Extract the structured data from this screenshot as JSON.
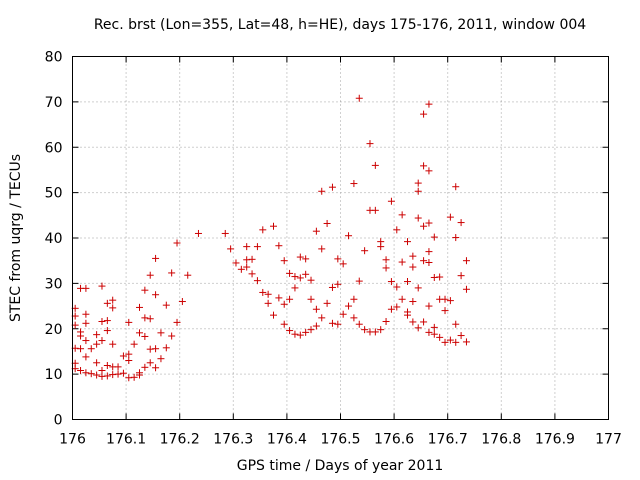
{
  "chart_data": {
    "type": "scatter",
    "title": "Rec. brst (Lon=355, Lat=48, h=HE), days 175-176, 2011, window 004",
    "xlabel": "GPS time / Days of year 2011",
    "ylabel": "STEC from uqrg / TECUs",
    "xlim": [
      176,
      177
    ],
    "ylim": [
      0,
      80
    ],
    "xticks": [
      "176",
      "176.1",
      "176.2",
      "176.3",
      "176.4",
      "176.5",
      "176.6",
      "176.7",
      "176.8",
      "176.9",
      "177"
    ],
    "yticks": [
      "0",
      "10",
      "20",
      "30",
      "40",
      "50",
      "60",
      "70",
      "80"
    ],
    "grid": true,
    "marker": "+",
    "color": "#cc0000",
    "series": [
      {
        "name": "STEC",
        "points": [
          [
            176.005,
            24.5
          ],
          [
            176.005,
            22.8
          ],
          [
            176.005,
            20.8
          ],
          [
            176.005,
            15.7
          ],
          [
            176.005,
            12.4
          ],
          [
            176.005,
            11.2
          ],
          [
            176.015,
            28.9
          ],
          [
            176.015,
            19.3
          ],
          [
            176.015,
            18.4
          ],
          [
            176.015,
            15.6
          ],
          [
            176.015,
            10.8
          ],
          [
            176.025,
            28.9
          ],
          [
            176.025,
            23.2
          ],
          [
            176.025,
            21.2
          ],
          [
            176.025,
            17.4
          ],
          [
            176.025,
            13.8
          ],
          [
            176.025,
            10.3
          ],
          [
            176.035,
            15.6
          ],
          [
            176.035,
            10.1
          ],
          [
            176.045,
            18.7
          ],
          [
            176.045,
            16.6
          ],
          [
            176.045,
            12.5
          ],
          [
            176.045,
            9.8
          ],
          [
            176.055,
            29.4
          ],
          [
            176.055,
            21.6
          ],
          [
            176.055,
            17.4
          ],
          [
            176.055,
            10.8
          ],
          [
            176.055,
            9.5
          ],
          [
            176.065,
            25.6
          ],
          [
            176.065,
            21.8
          ],
          [
            176.065,
            19.6
          ],
          [
            176.065,
            11.9
          ],
          [
            176.065,
            9.6
          ],
          [
            176.075,
            26.3
          ],
          [
            176.075,
            24.6
          ],
          [
            176.075,
            16.6
          ],
          [
            176.075,
            11.6
          ],
          [
            176.075,
            9.9
          ],
          [
            176.085,
            11.6
          ],
          [
            176.085,
            10.0
          ],
          [
            176.095,
            14.0
          ],
          [
            176.095,
            10.2
          ],
          [
            176.105,
            21.4
          ],
          [
            176.105,
            14.4
          ],
          [
            176.105,
            13.0
          ],
          [
            176.105,
            9.2
          ],
          [
            176.115,
            16.6
          ],
          [
            176.115,
            9.3
          ],
          [
            176.125,
            24.7
          ],
          [
            176.125,
            19.1
          ],
          [
            176.125,
            10.3
          ],
          [
            176.125,
            9.8
          ],
          [
            176.135,
            28.5
          ],
          [
            176.135,
            22.4
          ],
          [
            176.135,
            18.3
          ],
          [
            176.135,
            11.5
          ],
          [
            176.145,
            31.8
          ],
          [
            176.145,
            22.2
          ],
          [
            176.145,
            15.5
          ],
          [
            176.145,
            12.5
          ],
          [
            176.155,
            35.5
          ],
          [
            176.155,
            27.5
          ],
          [
            176.155,
            15.6
          ],
          [
            176.155,
            11.4
          ],
          [
            176.165,
            19.1
          ],
          [
            176.165,
            13.4
          ],
          [
            176.175,
            25.2
          ],
          [
            176.175,
            15.8
          ],
          [
            176.185,
            32.3
          ],
          [
            176.185,
            18.4
          ],
          [
            176.195,
            38.9
          ],
          [
            176.195,
            21.4
          ],
          [
            176.205,
            26.0
          ],
          [
            176.215,
            31.8
          ],
          [
            176.235,
            41.0
          ],
          [
            176.285,
            41.0
          ],
          [
            176.295,
            37.6
          ],
          [
            176.305,
            34.5
          ],
          [
            176.315,
            33.1
          ],
          [
            176.325,
            38.1
          ],
          [
            176.325,
            35.2
          ],
          [
            176.325,
            33.6
          ],
          [
            176.335,
            35.3
          ],
          [
            176.335,
            32.1
          ],
          [
            176.345,
            38.1
          ],
          [
            176.345,
            30.6
          ],
          [
            176.355,
            41.8
          ],
          [
            176.355,
            28.0
          ],
          [
            176.365,
            27.6
          ],
          [
            176.365,
            25.6
          ],
          [
            176.375,
            42.6
          ],
          [
            176.375,
            23.0
          ],
          [
            176.385,
            38.3
          ],
          [
            176.385,
            26.8
          ],
          [
            176.395,
            35.0
          ],
          [
            176.395,
            25.4
          ],
          [
            176.395,
            21.0
          ],
          [
            176.405,
            32.2
          ],
          [
            176.405,
            26.5
          ],
          [
            176.405,
            19.6
          ],
          [
            176.415,
            31.5
          ],
          [
            176.415,
            29.0
          ],
          [
            176.415,
            18.8
          ],
          [
            176.425,
            35.8
          ],
          [
            176.425,
            31.2
          ],
          [
            176.425,
            18.6
          ],
          [
            176.435,
            35.4
          ],
          [
            176.435,
            32.0
          ],
          [
            176.435,
            19.2
          ],
          [
            176.445,
            30.7
          ],
          [
            176.445,
            26.5
          ],
          [
            176.445,
            19.8
          ],
          [
            176.455,
            41.5
          ],
          [
            176.455,
            24.3
          ],
          [
            176.455,
            20.6
          ],
          [
            176.465,
            50.3
          ],
          [
            176.465,
            37.6
          ],
          [
            176.465,
            22.4
          ],
          [
            176.475,
            43.2
          ],
          [
            176.475,
            25.6
          ],
          [
            176.485,
            51.2
          ],
          [
            176.485,
            29.1
          ],
          [
            176.485,
            21.2
          ],
          [
            176.495,
            35.4
          ],
          [
            176.495,
            29.8
          ],
          [
            176.495,
            21.0
          ],
          [
            176.505,
            34.3
          ],
          [
            176.505,
            23.2
          ],
          [
            176.515,
            40.5
          ],
          [
            176.515,
            25.0
          ],
          [
            176.525,
            52.0
          ],
          [
            176.525,
            26.5
          ],
          [
            176.525,
            22.4
          ],
          [
            176.535,
            70.8
          ],
          [
            176.535,
            30.5
          ],
          [
            176.535,
            21.0
          ],
          [
            176.545,
            37.2
          ],
          [
            176.545,
            19.8
          ],
          [
            176.555,
            60.8
          ],
          [
            176.555,
            46.1
          ],
          [
            176.555,
            19.3
          ],
          [
            176.565,
            56.0
          ],
          [
            176.565,
            46.1
          ],
          [
            176.565,
            19.3
          ],
          [
            176.575,
            39.2
          ],
          [
            176.575,
            38.1
          ],
          [
            176.575,
            19.8
          ],
          [
            176.585,
            35.2
          ],
          [
            176.585,
            33.4
          ],
          [
            176.585,
            21.6
          ],
          [
            176.595,
            48.1
          ],
          [
            176.595,
            30.4
          ],
          [
            176.595,
            24.3
          ],
          [
            176.605,
            41.8
          ],
          [
            176.605,
            29.2
          ],
          [
            176.605,
            24.8
          ],
          [
            176.615,
            45.1
          ],
          [
            176.615,
            34.7
          ],
          [
            176.615,
            26.5
          ],
          [
            176.625,
            39.2
          ],
          [
            176.625,
            30.4
          ],
          [
            176.625,
            23.7
          ],
          [
            176.625,
            23.0
          ],
          [
            176.635,
            36.0
          ],
          [
            176.635,
            33.6
          ],
          [
            176.635,
            26.0
          ],
          [
            176.635,
            21.5
          ],
          [
            176.645,
            52.1
          ],
          [
            176.645,
            50.3
          ],
          [
            176.645,
            44.4
          ],
          [
            176.645,
            29.0
          ],
          [
            176.645,
            20.2
          ],
          [
            176.655,
            67.3
          ],
          [
            176.655,
            55.9
          ],
          [
            176.655,
            42.6
          ],
          [
            176.655,
            35.0
          ],
          [
            176.655,
            21.5
          ],
          [
            176.665,
            69.5
          ],
          [
            176.665,
            54.8
          ],
          [
            176.665,
            43.3
          ],
          [
            176.665,
            37.0
          ],
          [
            176.665,
            34.6
          ],
          [
            176.665,
            25.0
          ],
          [
            176.665,
            19.2
          ],
          [
            176.675,
            40.2
          ],
          [
            176.675,
            31.3
          ],
          [
            176.675,
            20.3
          ],
          [
            176.675,
            18.8
          ],
          [
            176.685,
            31.4
          ],
          [
            176.685,
            26.5
          ],
          [
            176.685,
            18.1
          ],
          [
            176.695,
            26.5
          ],
          [
            176.695,
            24.0
          ],
          [
            176.695,
            17.0
          ],
          [
            176.705,
            44.6
          ],
          [
            176.705,
            26.2
          ],
          [
            176.705,
            17.5
          ],
          [
            176.715,
            51.3
          ],
          [
            176.715,
            40.1
          ],
          [
            176.715,
            21.0
          ],
          [
            176.715,
            17.0
          ],
          [
            176.725,
            43.4
          ],
          [
            176.725,
            31.7
          ],
          [
            176.725,
            18.5
          ],
          [
            176.735,
            35.0
          ],
          [
            176.735,
            28.7
          ],
          [
            176.735,
            17.1
          ]
        ]
      }
    ]
  }
}
